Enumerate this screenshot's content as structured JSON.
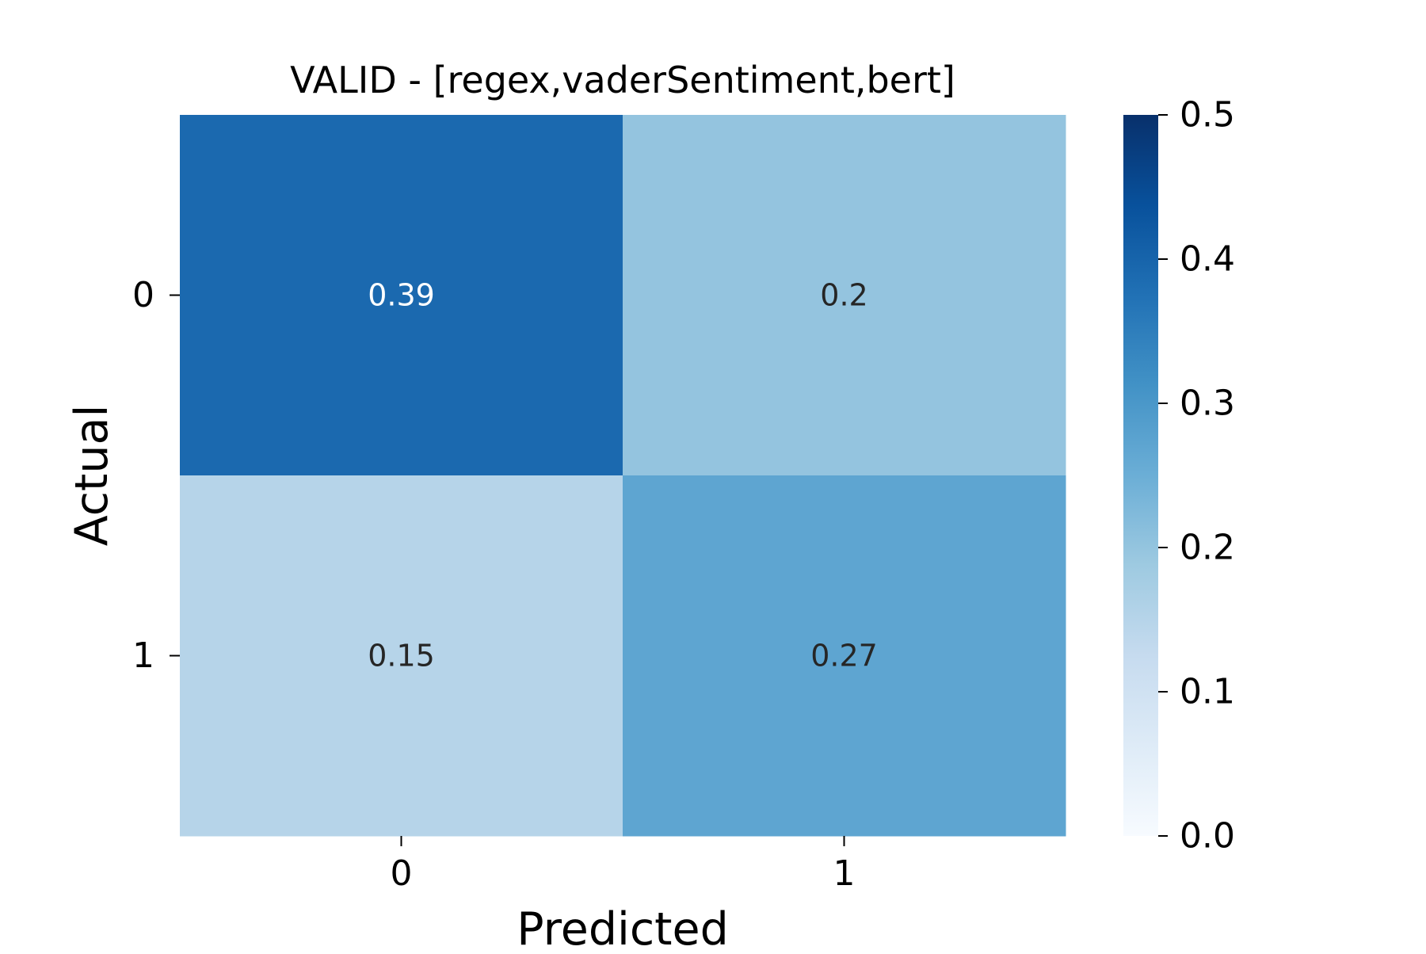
{
  "chart_data": {
    "type": "heatmap",
    "title": "VALID - [regex,vaderSentiment,bert]",
    "xlabel": "Predicted",
    "ylabel": "Actual",
    "x_categories": [
      "0",
      "1"
    ],
    "y_categories": [
      "0",
      "1"
    ],
    "values": [
      [
        0.39,
        0.2
      ],
      [
        0.15,
        0.27
      ]
    ],
    "cell_labels": [
      [
        "0.39",
        "0.2"
      ],
      [
        "0.15",
        "0.27"
      ]
    ],
    "colormap": "Blues",
    "colorbar": {
      "range": [
        0.0,
        0.5
      ],
      "ticks": [
        "0.0",
        "0.1",
        "0.2",
        "0.3",
        "0.4",
        "0.5"
      ],
      "placement": "right"
    },
    "grid": false
  }
}
